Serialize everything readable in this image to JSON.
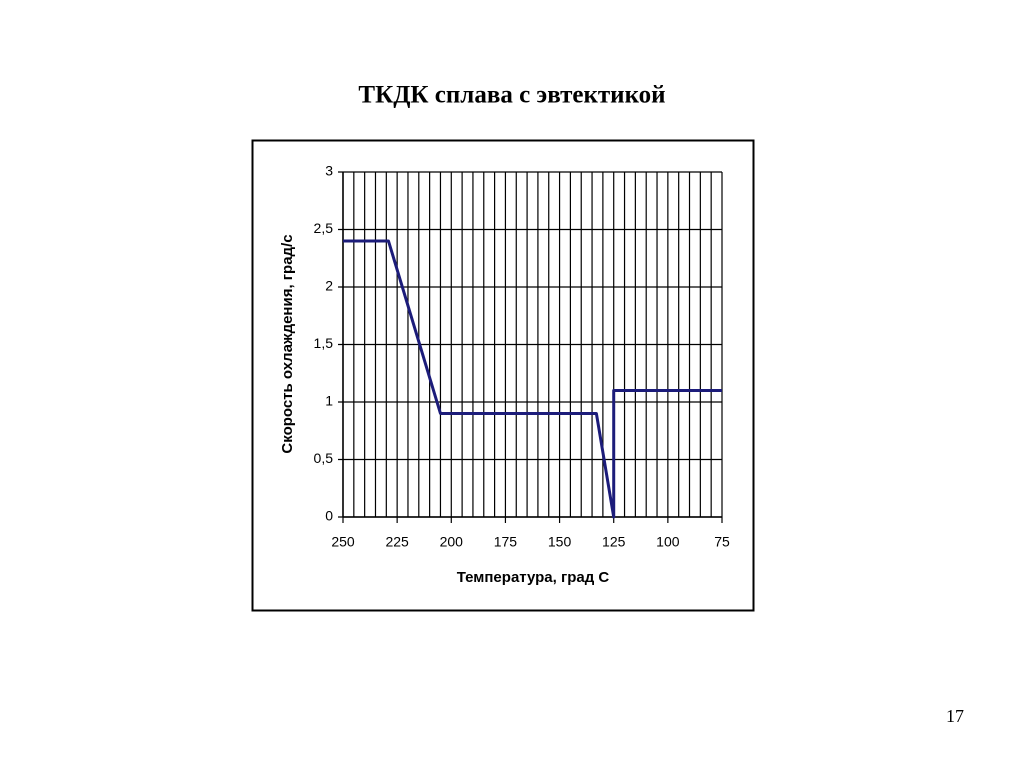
{
  "chart_data": {
    "type": "line",
    "title": "ТКДК сплава с эвтектикой",
    "x_label": "Температура, град С",
    "y_label": "Скорость охлаждения, град/с",
    "x": [
      250,
      229,
      205,
      133,
      125,
      125,
      75
    ],
    "series": [
      {
        "color": "#1c1c7a",
        "values": [
          2.4,
          2.4,
          0.9,
          0.9,
          0,
          1.1,
          1.1
        ]
      }
    ],
    "xlim": [
      250,
      75
    ],
    "xticks": [
      250,
      225,
      200,
      175,
      150,
      125,
      100,
      75
    ],
    "x_gridlines": [
      250,
      245,
      240,
      235,
      230,
      225,
      220,
      215,
      210,
      205,
      200,
      195,
      190,
      185,
      180,
      175,
      170,
      165,
      160,
      155,
      150,
      145,
      140,
      135,
      130,
      125,
      120,
      115,
      110,
      105,
      100,
      95,
      90,
      85,
      80,
      75
    ],
    "ylim": [
      0,
      3
    ],
    "yticks": [
      0,
      {
        "value": 0.5,
        "label": "0,5"
      },
      1,
      {
        "value": 1.5,
        "label": "1,5"
      },
      2,
      {
        "value": 2.5,
        "label": "2,5"
      },
      3
    ],
    "grid": true
  },
  "page_number": "17"
}
